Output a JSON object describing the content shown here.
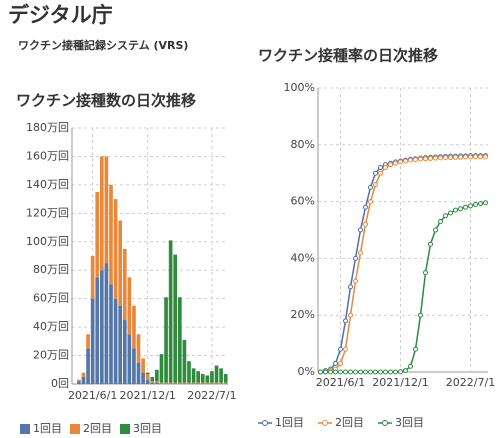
{
  "header": {
    "title": "デジタル庁",
    "subtitle": "ワクチン接種記録システム (VRS)"
  },
  "chart_data": [
    {
      "type": "stacked_bar",
      "title": "ワクチン接種数の日次推移",
      "categories": [
        null,
        null,
        null,
        null,
        "2021/6/1",
        null,
        null,
        null,
        null,
        null,
        null,
        null,
        null,
        null,
        null,
        null,
        "2021/12/1",
        null,
        null,
        null,
        null,
        null,
        null,
        null,
        null,
        null,
        null,
        null,
        null,
        null,
        "2022/7/1",
        null,
        null,
        null
      ],
      "series": [
        {
          "name": "1回目",
          "color": "#5576a8",
          "values": [
            0,
            2,
            5,
            25,
            60,
            75,
            80,
            85,
            70,
            60,
            55,
            45,
            35,
            25,
            15,
            8,
            3,
            1,
            1,
            0.5,
            0.5,
            0.5,
            0.5,
            0.5,
            0.5,
            0.5,
            0.5,
            0.5,
            0.5,
            0.5,
            0.5,
            0.5,
            0.5,
            0.5
          ]
        },
        {
          "name": "2回目",
          "color": "#e8883a",
          "values": [
            0,
            1,
            3,
            10,
            30,
            60,
            80,
            75,
            70,
            70,
            60,
            50,
            40,
            30,
            20,
            10,
            4,
            1,
            1,
            0.5,
            0.5,
            0.5,
            0.5,
            0.5,
            0.5,
            0.5,
            0.5,
            0.5,
            0.5,
            0.5,
            0.5,
            0.5,
            0.5,
            0.5
          ]
        },
        {
          "name": "3回目",
          "color": "#2f8c3f",
          "values": [
            0,
            0,
            0,
            0,
            0,
            0,
            0,
            0,
            0,
            0,
            0,
            0,
            0,
            0,
            0,
            0,
            1,
            3,
            8,
            20,
            60,
            100,
            90,
            60,
            30,
            15,
            10,
            8,
            6,
            5,
            8,
            12,
            10,
            6
          ]
        }
      ],
      "ylim": [
        0,
        180
      ],
      "yticks": [
        {
          "value": 0,
          "label": "0回"
        },
        {
          "value": 20,
          "label": "20万回"
        },
        {
          "value": 40,
          "label": "40万回"
        },
        {
          "value": 60,
          "label": "60万回"
        },
        {
          "value": 80,
          "label": "80万回"
        },
        {
          "value": 100,
          "label": "100万回"
        },
        {
          "value": 120,
          "label": "120万回"
        },
        {
          "value": 140,
          "label": "140万回"
        },
        {
          "value": 160,
          "label": "160万回"
        },
        {
          "value": 180,
          "label": "180万回"
        }
      ],
      "grid": true
    },
    {
      "type": "line",
      "title": "ワクチン接種率の日次推移",
      "categories": [
        null,
        null,
        null,
        null,
        "2021/6/1",
        null,
        null,
        null,
        null,
        null,
        null,
        null,
        null,
        null,
        null,
        null,
        "2021/12/1",
        null,
        null,
        null,
        null,
        null,
        null,
        null,
        null,
        null,
        null,
        null,
        null,
        null,
        "2022/7/1",
        null,
        null,
        null
      ],
      "series": [
        {
          "name": "1回目",
          "color": "#4f70a6",
          "values": [
            0,
            0.5,
            1,
            3,
            8,
            18,
            30,
            40,
            50,
            58,
            65,
            70,
            72,
            73,
            73.5,
            74,
            74.3,
            74.6,
            74.9,
            75.1,
            75.3,
            75.5,
            75.6,
            75.7,
            75.8,
            75.9,
            76,
            76,
            76.1,
            76.1,
            76.2,
            76.2,
            76.2,
            76.2
          ]
        },
        {
          "name": "2回目",
          "color": "#e8883a",
          "values": [
            0,
            0,
            0.5,
            1,
            3,
            8,
            20,
            32,
            42,
            52,
            60,
            66,
            70,
            72,
            73,
            73.5,
            74,
            74.3,
            74.6,
            74.8,
            75,
            75.1,
            75.2,
            75.3,
            75.4,
            75.5,
            75.5,
            75.6,
            75.6,
            75.7,
            75.7,
            75.8,
            75.8,
            75.8
          ]
        },
        {
          "name": "3回目",
          "color": "#2f8c3f",
          "values": [
            0,
            0,
            0,
            0,
            0,
            0,
            0,
            0,
            0,
            0,
            0,
            0,
            0,
            0,
            0,
            0,
            0.1,
            0.5,
            2,
            8,
            20,
            35,
            45,
            50,
            53,
            55,
            56,
            57,
            57.5,
            58,
            58.5,
            59,
            59.3,
            59.6
          ]
        }
      ],
      "ylim": [
        0,
        100
      ],
      "yticks": [
        {
          "value": 0,
          "label": "0%"
        },
        {
          "value": 20,
          "label": "20%"
        },
        {
          "value": 40,
          "label": "40%"
        },
        {
          "value": 60,
          "label": "60%"
        },
        {
          "value": 80,
          "label": "80%"
        },
        {
          "value": 100,
          "label": "100%"
        }
      ],
      "grid": true
    }
  ]
}
